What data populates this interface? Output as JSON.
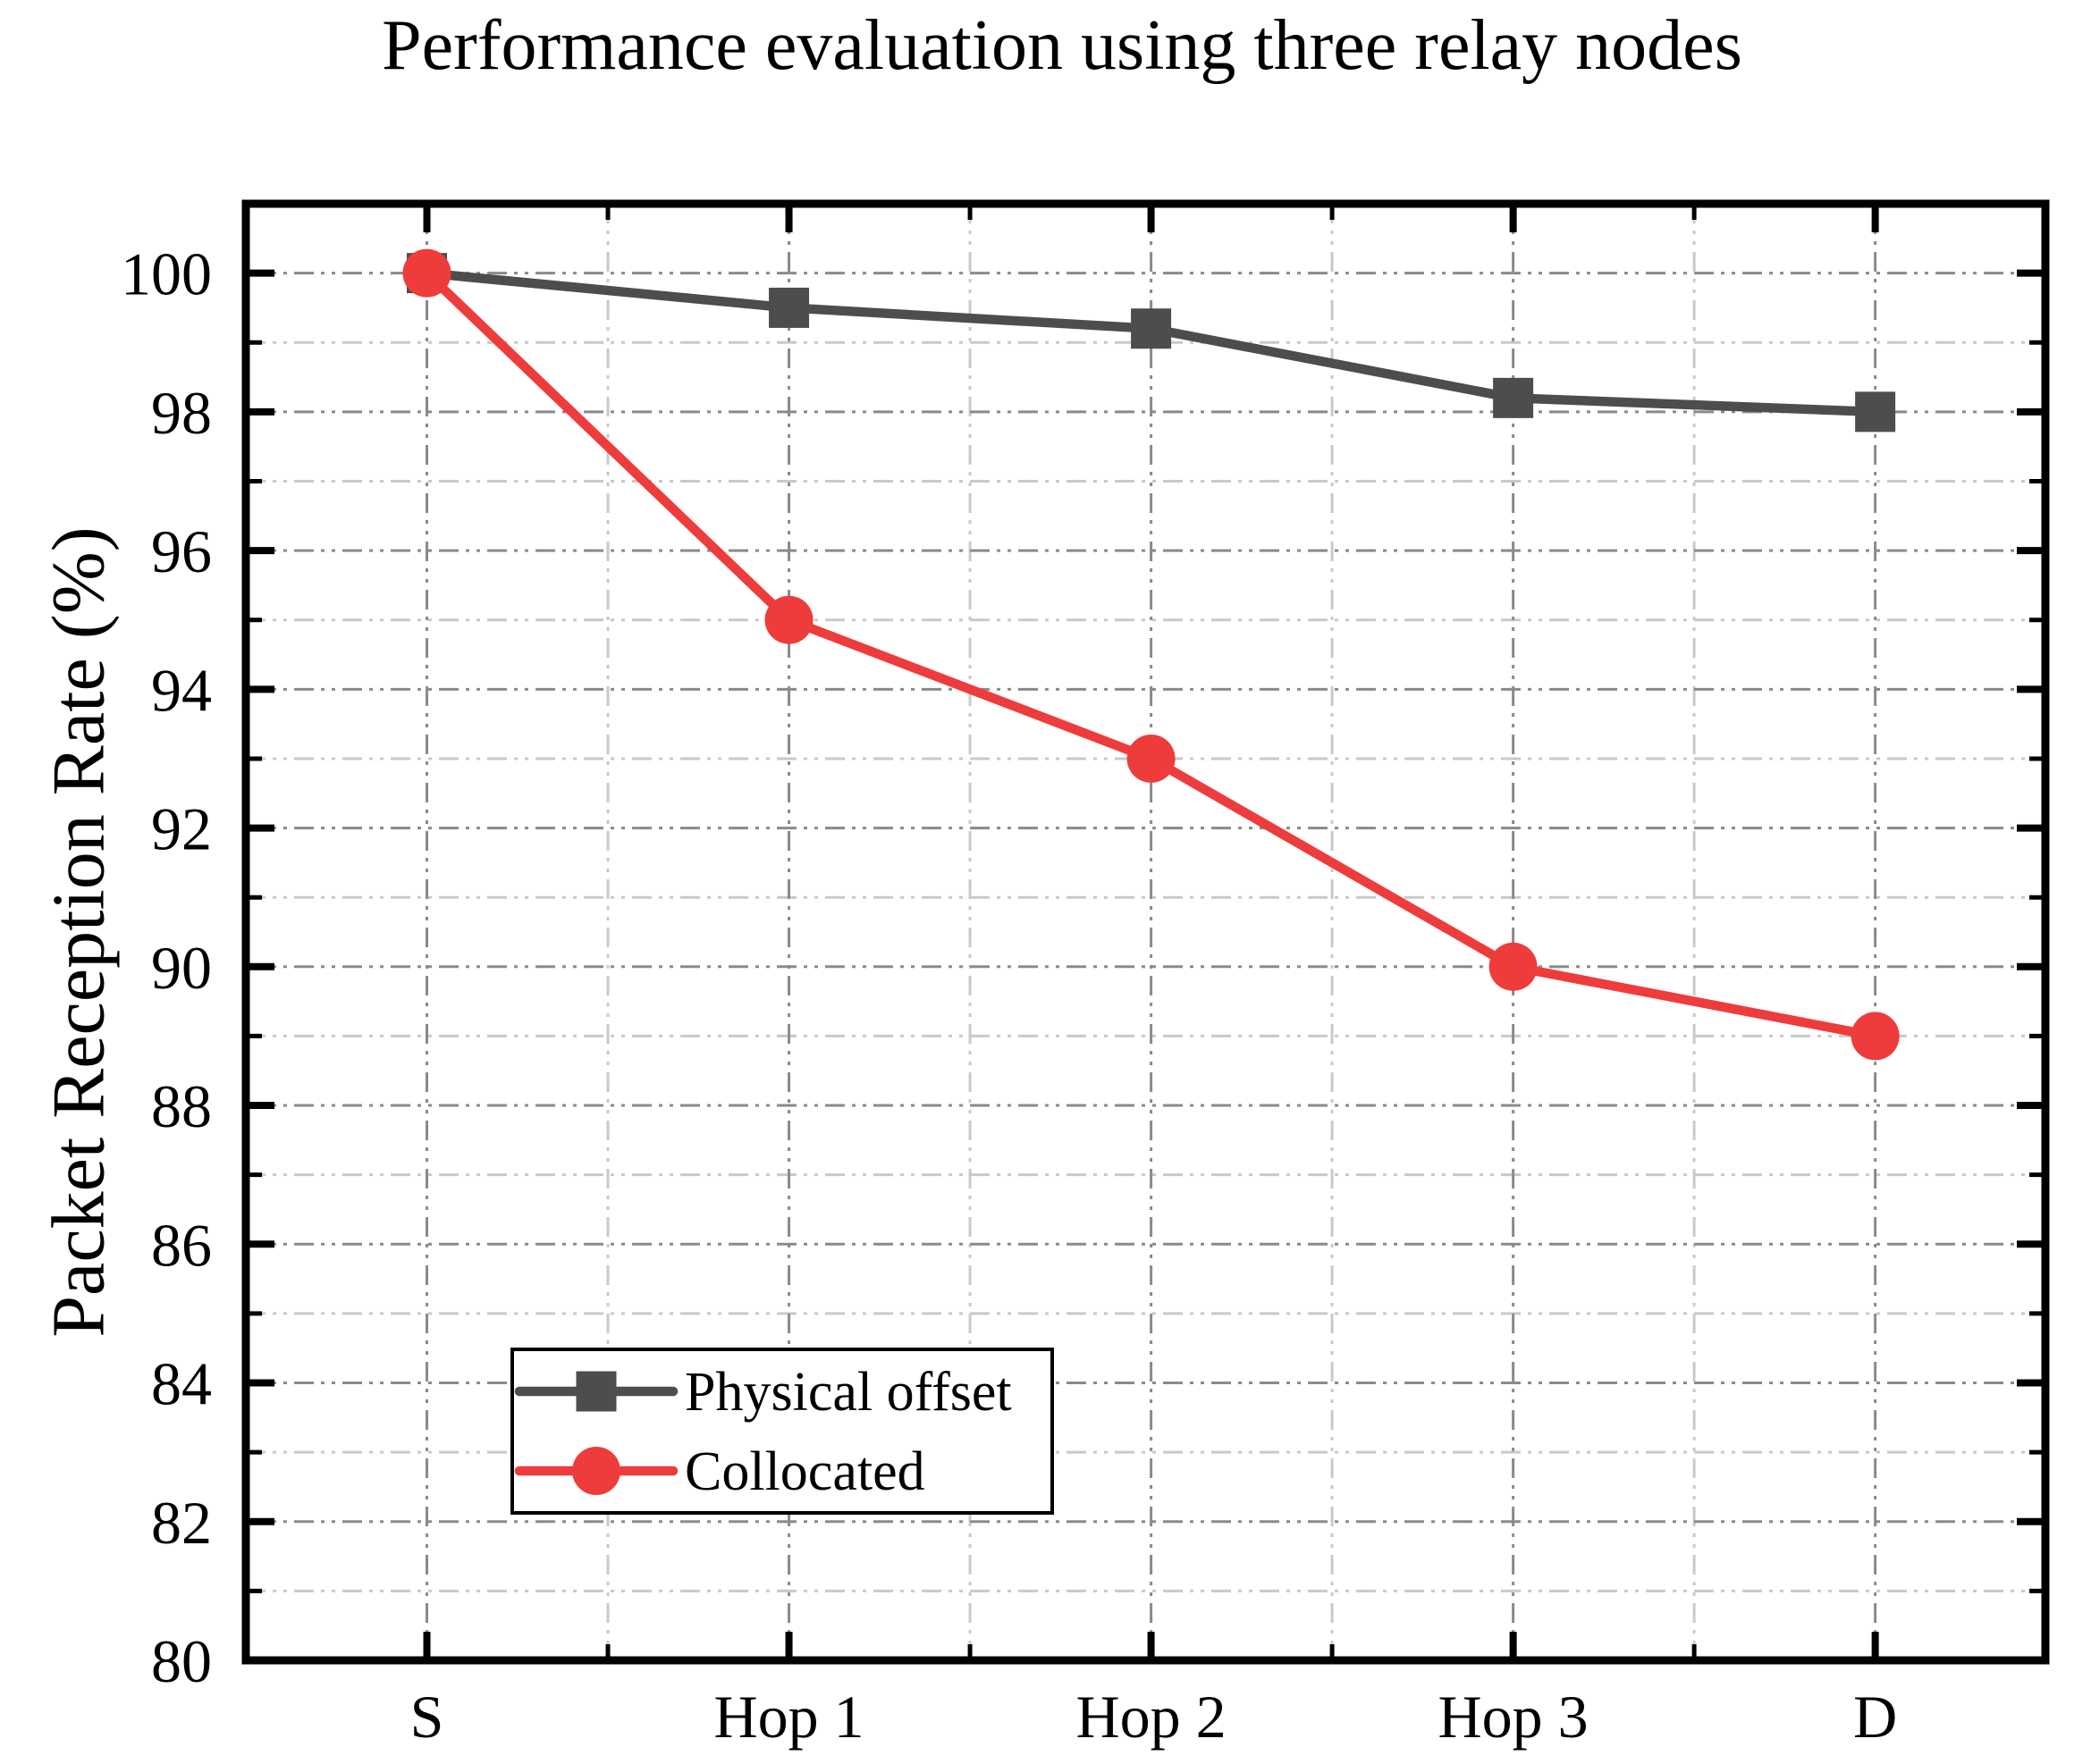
{
  "chart_data": {
    "type": "line",
    "title": "Performance evaluation using three relay nodes",
    "xlabel": "",
    "ylabel": "Packet Reception Rate (%)",
    "categories": [
      "S",
      "Hop 1",
      "Hop 2",
      "Hop 3",
      "D"
    ],
    "ylim": [
      80,
      101
    ],
    "xlim": [
      -0.5,
      4.47
    ],
    "y_major_ticks": [
      80,
      82,
      84,
      86,
      88,
      90,
      92,
      94,
      96,
      98,
      100
    ],
    "y_minor_ticks": [
      81,
      83,
      85,
      87,
      89,
      91,
      93,
      95,
      97,
      99
    ],
    "grid": {
      "major": true,
      "minor": true,
      "style": "dash-dot-dot"
    },
    "legend": {
      "position": "lower-left",
      "entries": [
        "Physical offset",
        "Collocated"
      ]
    },
    "series": [
      {
        "name": "Physical offset",
        "color": "#4d4d4d",
        "marker": "square",
        "values": [
          100,
          99.5,
          99.2,
          98.2,
          98
        ]
      },
      {
        "name": "Collocated",
        "color": "#ee3c3c",
        "marker": "circle",
        "values": [
          100,
          95,
          93,
          90,
          89
        ]
      }
    ]
  },
  "style": {
    "frame_color": "#000000",
    "tick_color": "#000000",
    "grid_major_color": "#8a8a8a",
    "grid_minor_color": "#c9c9c9",
    "background_color": "#ffffff",
    "text_color": "#000000"
  }
}
